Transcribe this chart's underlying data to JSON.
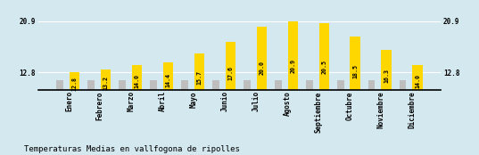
{
  "categories": [
    "Enero",
    "Febrero",
    "Marzo",
    "Abril",
    "Mayo",
    "Junio",
    "Julio",
    "Agosto",
    "Septiembre",
    "Octubre",
    "Noviembre",
    "Diciembre"
  ],
  "values": [
    12.8,
    13.2,
    14.0,
    14.4,
    15.7,
    17.6,
    20.0,
    20.9,
    20.5,
    18.5,
    16.3,
    14.0
  ],
  "gray_values": [
    11.5,
    11.5,
    11.5,
    11.5,
    11.5,
    11.5,
    11.5,
    11.5,
    11.5,
    11.5,
    11.5,
    11.5
  ],
  "bar_color_yellow": "#FFD700",
  "bar_color_gray": "#BEBEBE",
  "background_color": "#D4E8F0",
  "grid_color": "#C0D4DC",
  "title": "Temperaturas Medias en vallfogona de ripolles",
  "ylim_min": 10.0,
  "ylim_max": 22.5,
  "yticks": [
    12.8,
    20.9
  ],
  "title_fontsize": 6.5,
  "tick_fontsize": 5.5,
  "value_label_fontsize": 4.8
}
